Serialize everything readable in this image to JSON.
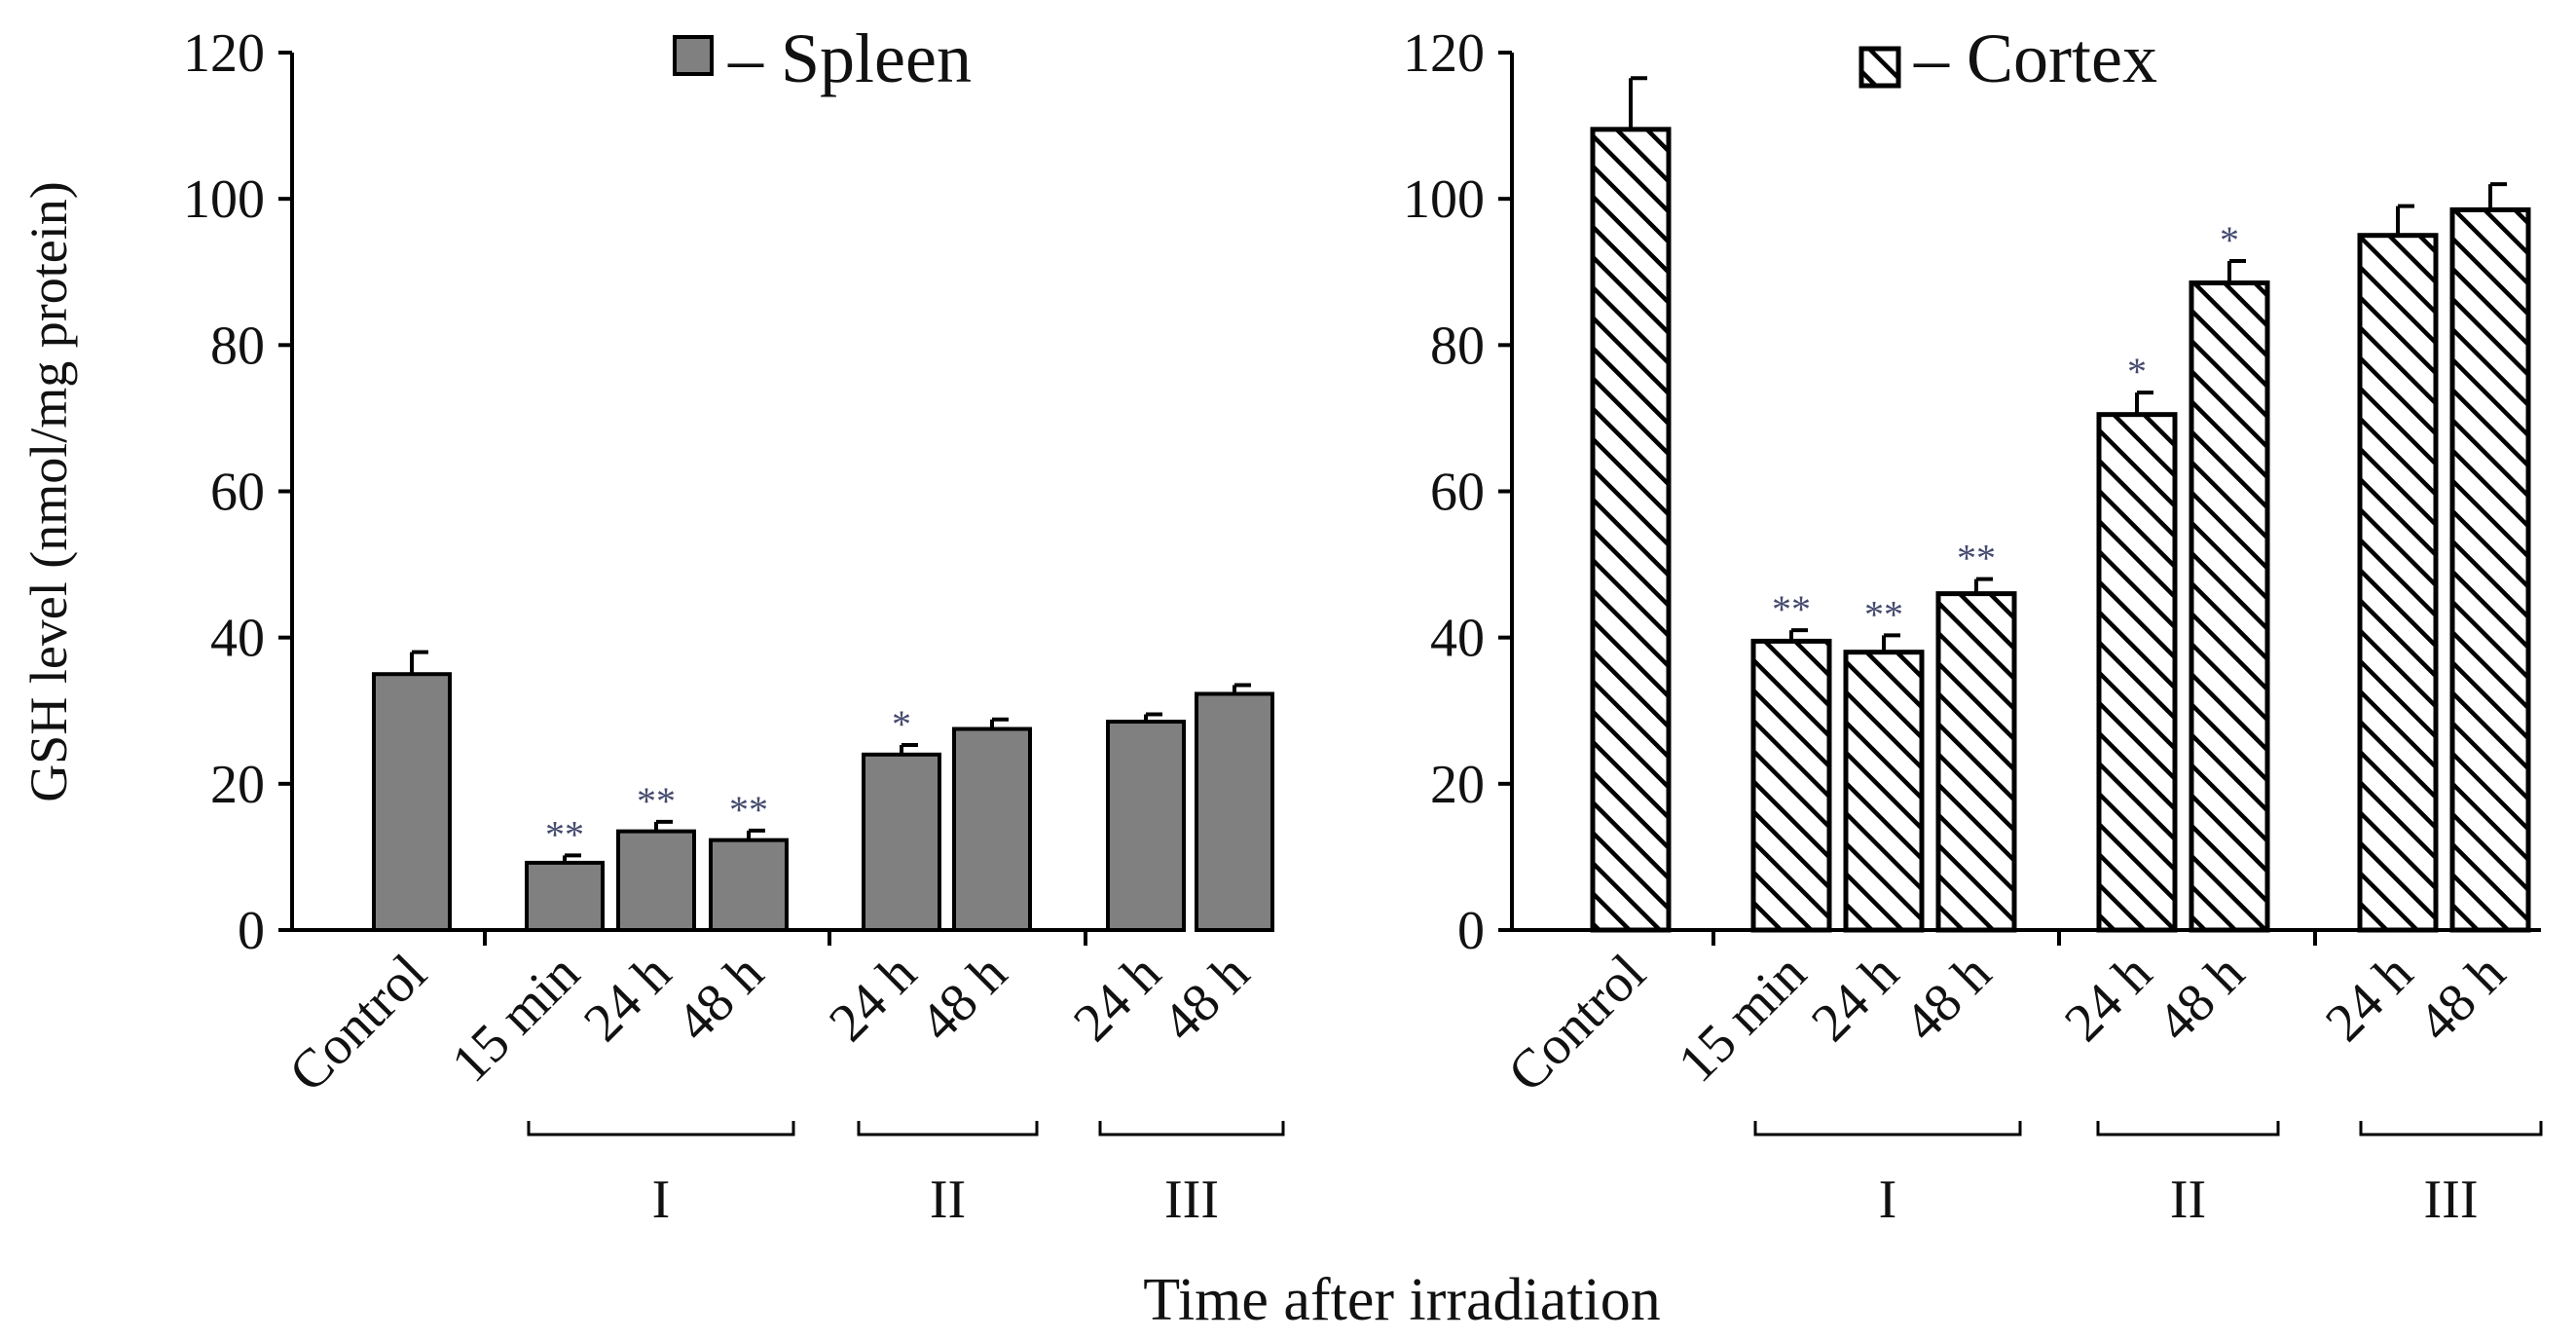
{
  "y_axis_label": "GSH level (nmol/mg protein)",
  "x_axis_label": "Time after irradiation",
  "chart_data": [
    {
      "type": "bar",
      "legend": "– Spleen",
      "fill": "solid",
      "color": "#808080",
      "ylim": [
        0,
        120
      ],
      "yticks": [
        0,
        20,
        40,
        60,
        80,
        100,
        120
      ],
      "categories": [
        "Control",
        "15 min",
        "24 h",
        "48 h",
        "24 h",
        "48 h",
        "24 h",
        "48 h"
      ],
      "values": [
        35,
        9.2,
        13.5,
        12.3,
        24,
        27.5,
        28.5,
        32.3
      ],
      "errors": [
        3,
        1,
        1.3,
        1.3,
        1.3,
        1.3,
        1,
        1.2
      ],
      "significance": [
        "",
        "**",
        "**",
        "**",
        "*",
        "",
        "",
        ""
      ],
      "groups": [
        {
          "label": "I",
          "from": 1,
          "to": 3
        },
        {
          "label": "II",
          "from": 4,
          "to": 5
        },
        {
          "label": "III",
          "from": 6,
          "to": 7
        }
      ]
    },
    {
      "type": "bar",
      "legend": "– Cortex",
      "fill": "hatched",
      "color": "#000000",
      "ylim": [
        0,
        120
      ],
      "yticks": [
        0,
        20,
        40,
        60,
        80,
        100,
        120
      ],
      "categories": [
        "Control",
        "15 min",
        "24 h",
        "48 h",
        "24 h",
        "48 h",
        "24 h",
        "48 h"
      ],
      "values": [
        109.5,
        39.5,
        38,
        46,
        70.5,
        88.5,
        95,
        98.5
      ],
      "errors": [
        7,
        1.5,
        2.3,
        2,
        3,
        3,
        4,
        3.5
      ],
      "significance": [
        "",
        "**",
        "**",
        "**",
        "*",
        "*",
        "",
        ""
      ],
      "groups": [
        {
          "label": "I",
          "from": 1,
          "to": 3
        },
        {
          "label": "II",
          "from": 4,
          "to": 5
        },
        {
          "label": "III",
          "from": 6,
          "to": 7
        }
      ]
    }
  ]
}
